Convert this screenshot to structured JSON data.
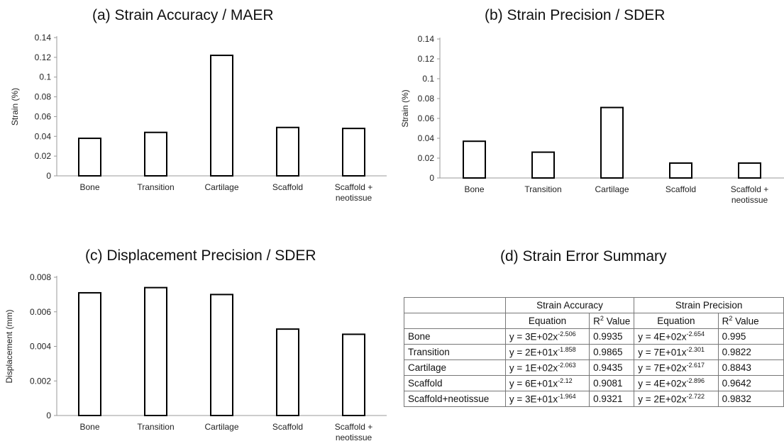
{
  "chart_data": [
    {
      "type": "bar",
      "title": "(a) Strain Accuracy / MAER",
      "ylabel": "Strain (%)",
      "categories": [
        "Bone",
        "Transition",
        "Cartilage",
        "Scaffold",
        "Scaffold +\nneotissue"
      ],
      "values": [
        0.038,
        0.044,
        0.122,
        0.049,
        0.048
      ],
      "ylim": [
        0,
        0.14
      ],
      "yticks": [
        "0",
        "0.02",
        "0.04",
        "0.06",
        "0.08",
        "0.1",
        "0.12",
        "0.14"
      ],
      "grid": false
    },
    {
      "type": "bar",
      "title": "(b) Strain Precision / SDER",
      "ylabel": "Strain (%)",
      "categories": [
        "Bone",
        "Transition",
        "Cartilage",
        "Scaffold",
        "Scaffold +\nneotissue"
      ],
      "values": [
        0.037,
        0.026,
        0.071,
        0.015,
        0.015
      ],
      "ylim": [
        0,
        0.14
      ],
      "yticks": [
        "0",
        "0.02",
        "0.04",
        "0.06",
        "0.08",
        "0.1",
        "0.12",
        "0.14"
      ],
      "grid": false
    },
    {
      "type": "bar",
      "title": "(c) Displacement Precision / SDER",
      "ylabel": "Displacement (mm)",
      "categories": [
        "Bone",
        "Transition",
        "Cartilage",
        "Scaffold",
        "Scaffold +\nneotissue"
      ],
      "values": [
        0.0071,
        0.0074,
        0.007,
        0.005,
        0.0047
      ],
      "ylim": [
        0,
        0.008
      ],
      "yticks": [
        "0",
        "0.002",
        "0.004",
        "0.006",
        "0.008"
      ],
      "grid": false
    },
    {
      "type": "table",
      "title": "(d) Strain Error Summary",
      "group_headers": [
        "Strain Accuracy",
        "Strain Precision"
      ],
      "sub_headers": [
        "Equation",
        "Value",
        "Equation",
        "Value"
      ],
      "r_symbol": "R",
      "r_sup": "2",
      "rows": [
        {
          "label": "Bone",
          "acc_eq": "y = 3E+02x",
          "acc_exp": "-2.506",
          "acc_r2": "0.9935",
          "pre_eq": "y = 4E+02x",
          "pre_exp": "-2.654",
          "pre_r2": "0.995"
        },
        {
          "label": "Transition",
          "acc_eq": "y = 2E+01x",
          "acc_exp": "-1.858",
          "acc_r2": "0.9865",
          "pre_eq": "y = 7E+01x",
          "pre_exp": "-2.301",
          "pre_r2": "0.9822"
        },
        {
          "label": "Cartilage",
          "acc_eq": "y = 1E+02x",
          "acc_exp": "-2.063",
          "acc_r2": "0.9435",
          "pre_eq": "y = 7E+02x",
          "pre_exp": "-2.617",
          "pre_r2": "0.8843"
        },
        {
          "label": "Scaffold",
          "acc_eq": "y = 6E+01x",
          "acc_exp": "-2.12",
          "acc_r2": "0.9081",
          "pre_eq": "y = 4E+02x",
          "pre_exp": "-2.896",
          "pre_r2": "0.9642"
        },
        {
          "label": "Scaffold+neotissue",
          "acc_eq": "y = 3E+01x",
          "acc_exp": "-1.964",
          "acc_r2": "0.9321",
          "pre_eq": "y = 2E+02x",
          "pre_exp": "-2.722",
          "pre_r2": "0.9832"
        }
      ]
    }
  ]
}
